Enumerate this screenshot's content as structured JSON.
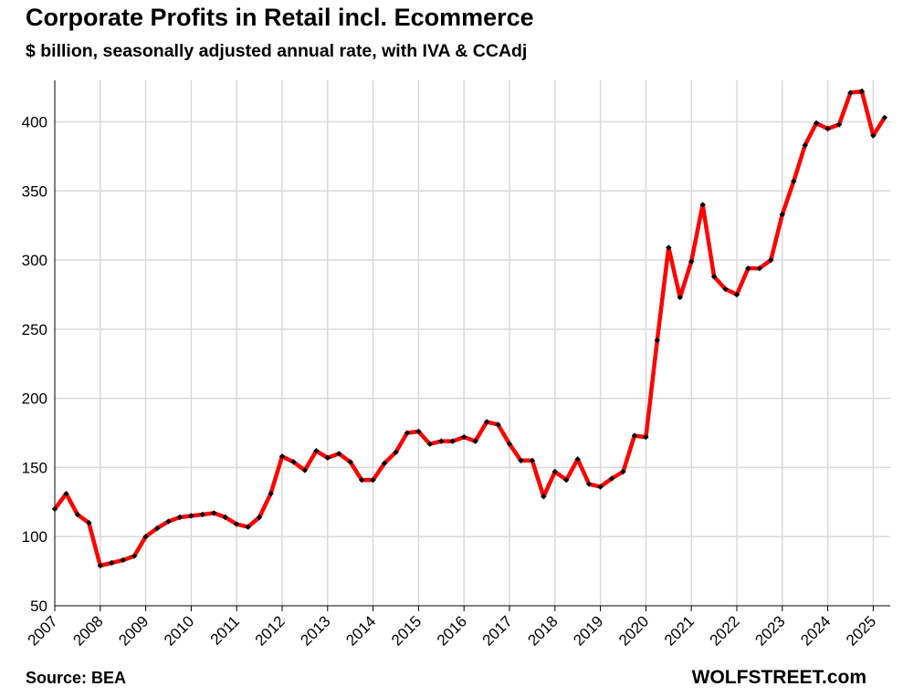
{
  "chart_data": {
    "type": "line",
    "title": "Corporate Profits in Retail incl. Ecommerce",
    "subtitle": "$ billion, seasonally adjusted annual rate, with IVA & CCAdj",
    "source": "Source: BEA",
    "brand": "WOLFSTREET.com",
    "xlabel": "",
    "ylabel": "",
    "ylim": [
      50,
      430
    ],
    "y_ticks": [
      50,
      100,
      150,
      200,
      250,
      300,
      350,
      400
    ],
    "x_ticks": [
      "2007",
      "2008",
      "2009",
      "2010",
      "2011",
      "2012",
      "2013",
      "2014",
      "2015",
      "2016",
      "2017",
      "2018",
      "2019",
      "2020",
      "2021",
      "2022",
      "2023",
      "2024",
      "2025"
    ],
    "x_start": "2007-Q1",
    "grid": true,
    "line_color": "#ff0000",
    "marker_color": "#000000",
    "series": [
      {
        "values": [
          120,
          131,
          116,
          110,
          79,
          81,
          83,
          86,
          100,
          106,
          111,
          114,
          115,
          116,
          117,
          114,
          109,
          107,
          114,
          131,
          158,
          154,
          148,
          162,
          157,
          160,
          154,
          141,
          141,
          153,
          161,
          175,
          176,
          167,
          169,
          169,
          172,
          169,
          183,
          181,
          167,
          155,
          155,
          129,
          147,
          141,
          156,
          138,
          136,
          142,
          147,
          173,
          172,
          242,
          309,
          273,
          299,
          340,
          288,
          279,
          275,
          294,
          294,
          300,
          333,
          357,
          383,
          399,
          395,
          398,
          421,
          422,
          390,
          403
        ]
      }
    ]
  }
}
